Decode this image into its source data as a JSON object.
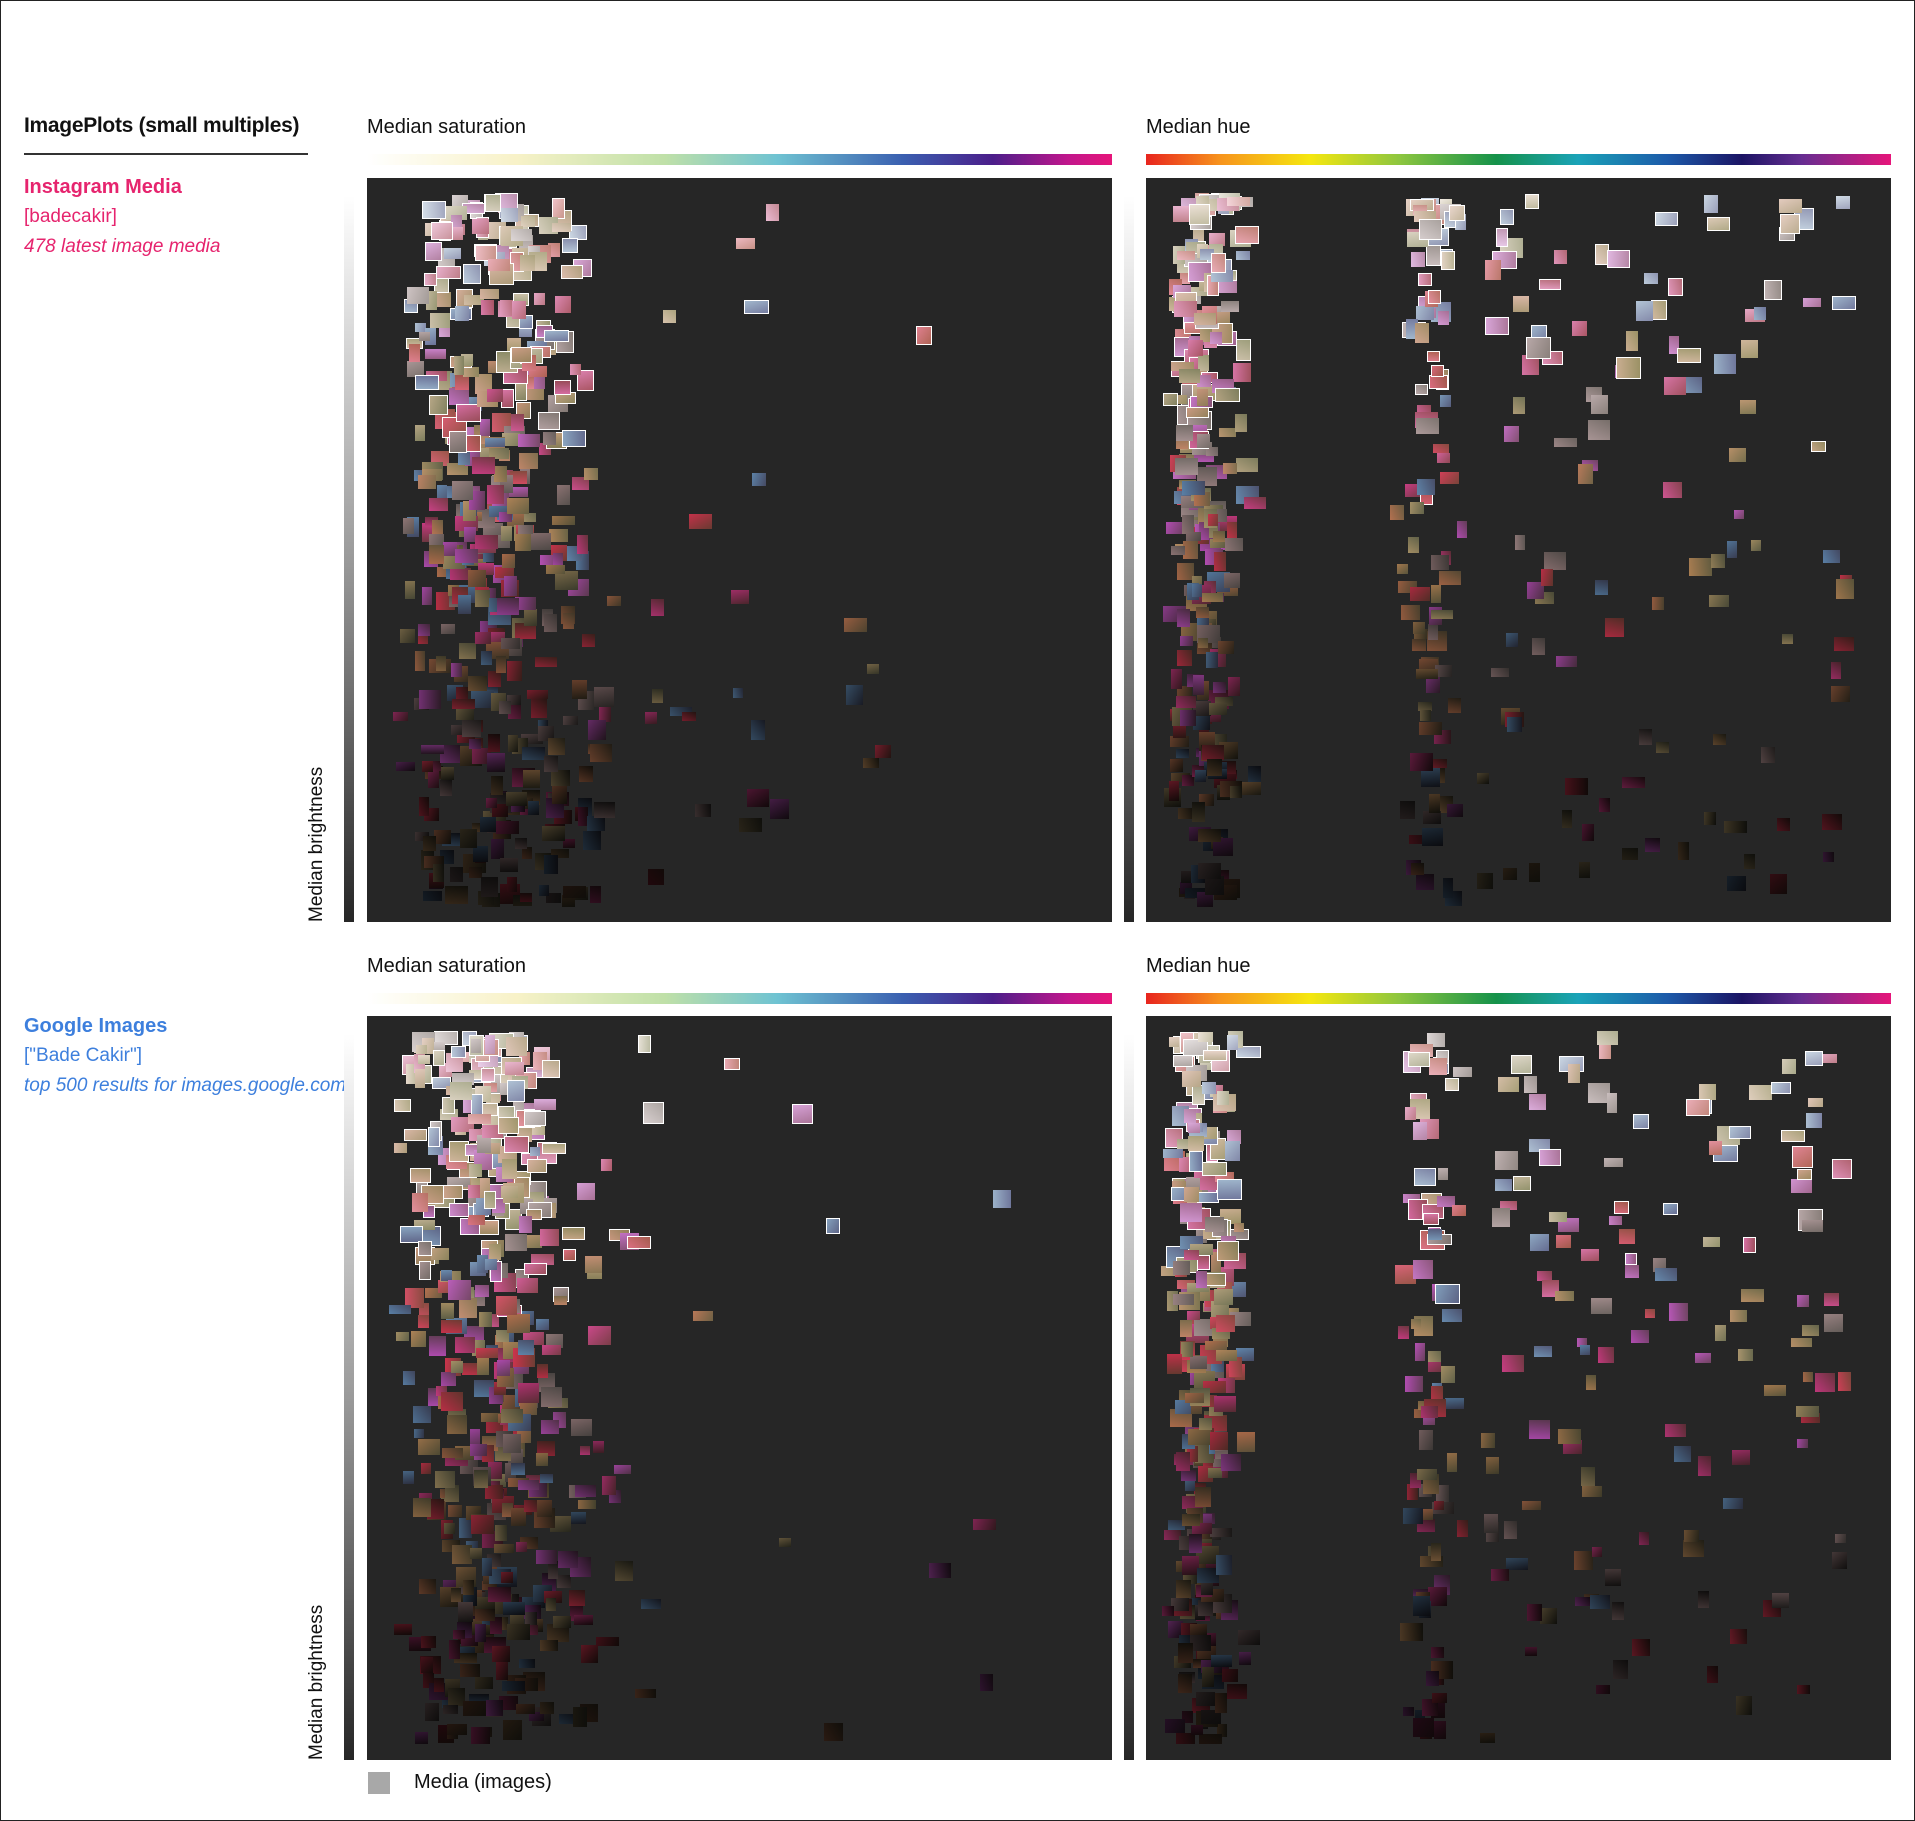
{
  "title": "ImagePlots (small multiples)",
  "legend": {
    "label": "Media (images)",
    "swatch_color": "#a8a8a8"
  },
  "colors": {
    "instagram": "#e6246e",
    "google": "#3d7fdd",
    "plot_bg": "#262626"
  },
  "sections": [
    {
      "name": "Instagram Media",
      "query": "[badecakir]",
      "description": "478 latest image media"
    },
    {
      "name": "Google Images",
      "query": "[\"Bade Cakir\"]",
      "description": "top 500 results for images.google.com"
    }
  ],
  "y_axis_label": "Median brightness",
  "chart_data": [
    {
      "type": "scatter",
      "source": "Instagram Media",
      "xlabel": "Median saturation",
      "ylabel": "Median brightness",
      "n": 478,
      "x_color_scale": "saturation",
      "marks": "image thumbnails"
    },
    {
      "type": "scatter",
      "source": "Instagram Media",
      "xlabel": "Median hue",
      "ylabel": "Median brightness",
      "n": 478,
      "x_color_scale": "hue",
      "marks": "image thumbnails"
    },
    {
      "type": "scatter",
      "source": "Google Images",
      "xlabel": "Median saturation",
      "ylabel": "Median brightness",
      "n": 500,
      "x_color_scale": "saturation",
      "marks": "image thumbnails"
    },
    {
      "type": "scatter",
      "source": "Google Images",
      "xlabel": "Median hue",
      "ylabel": "Median brightness",
      "n": 500,
      "x_color_scale": "hue",
      "marks": "image thumbnails"
    }
  ]
}
